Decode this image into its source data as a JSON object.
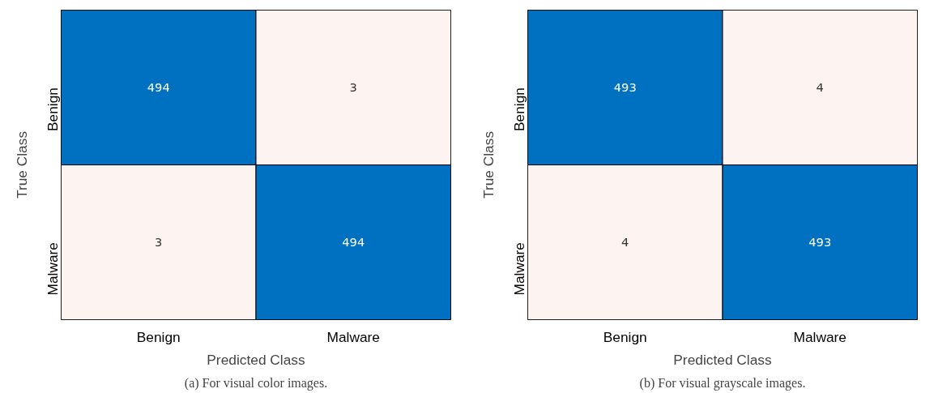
{
  "chart_data": [
    {
      "type": "heatmap",
      "xlabel": "Predicted Class",
      "ylabel": "True Class",
      "categories": [
        "Benign",
        "Malware"
      ],
      "y_categories": [
        "Benign",
        "Malware"
      ],
      "cells": [
        [
          494,
          3
        ],
        [
          3,
          494
        ]
      ],
      "colors": [
        "#fdf3f0",
        "#0070c0"
      ],
      "data_labels": true,
      "annotations": [
        "(a) For visual color images."
      ]
    },
    {
      "type": "heatmap",
      "xlabel": "Predicted Class",
      "ylabel": "True Class",
      "categories": [
        "Benign",
        "Malware"
      ],
      "y_categories": [
        "Benign",
        "Malware"
      ],
      "cells": [
        [
          493,
          4
        ],
        [
          4,
          493
        ]
      ],
      "colors": [
        "#fdf3f0",
        "#0070c0"
      ],
      "data_labels": true,
      "annotations": [
        "(b) For visual grayscale images."
      ]
    }
  ]
}
